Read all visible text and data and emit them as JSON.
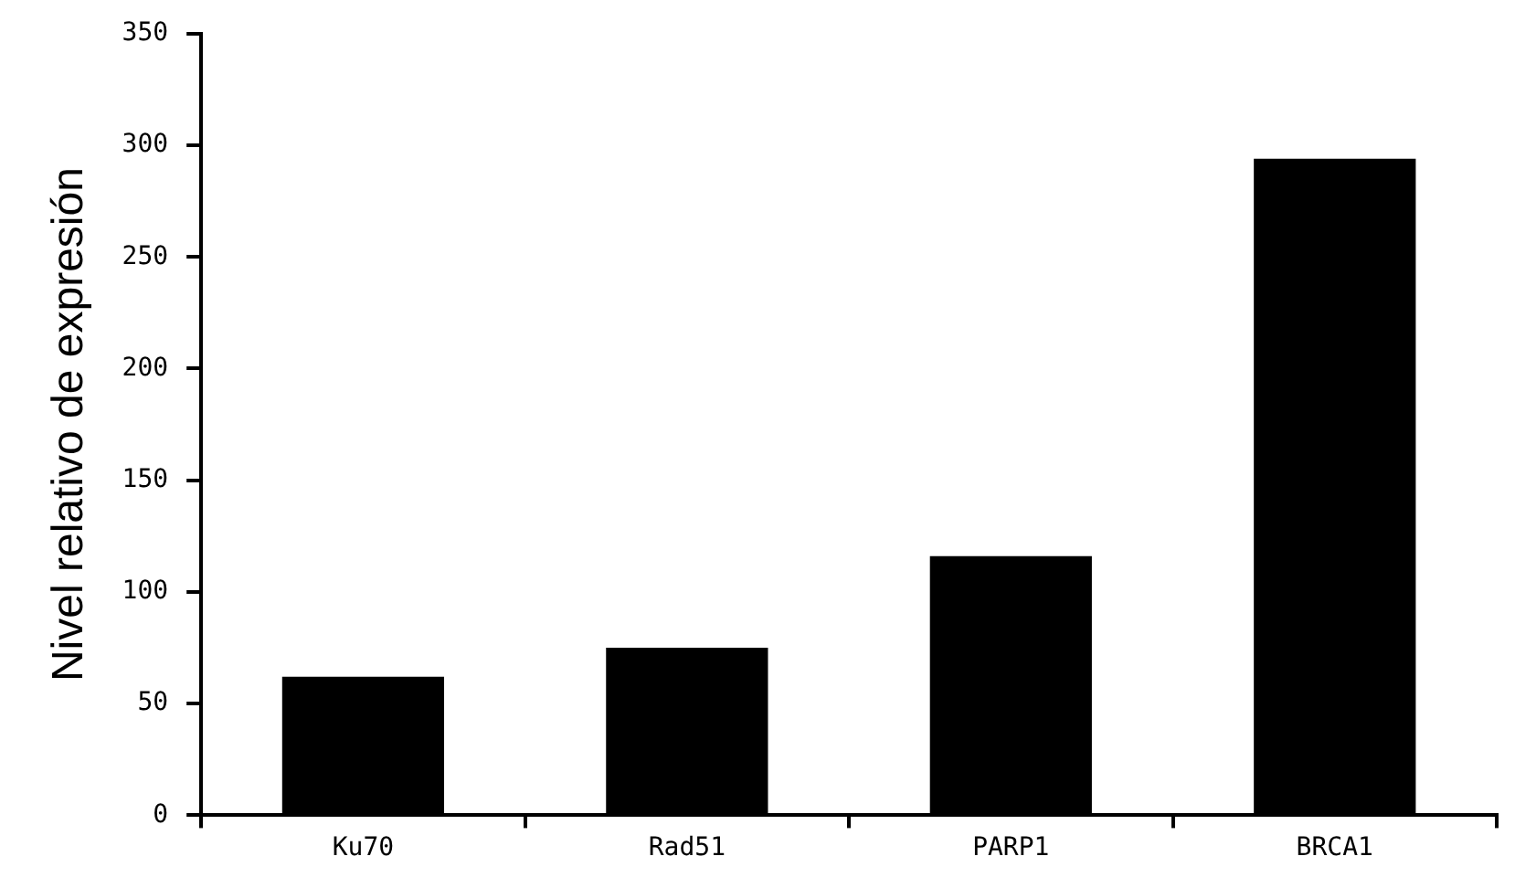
{
  "chart_data": {
    "type": "bar",
    "ylabel": "Nivel relativo de expresión",
    "categories": [
      "Ku70",
      "Rad51",
      "PARP1",
      "BRCA1"
    ],
    "values": [
      62,
      75,
      116,
      294
    ],
    "color": "#000000",
    "ylim": [
      0,
      350
    ],
    "yticks": [
      0,
      50,
      100,
      150,
      200,
      250,
      300,
      350
    ],
    "grid": false,
    "legend": false
  }
}
